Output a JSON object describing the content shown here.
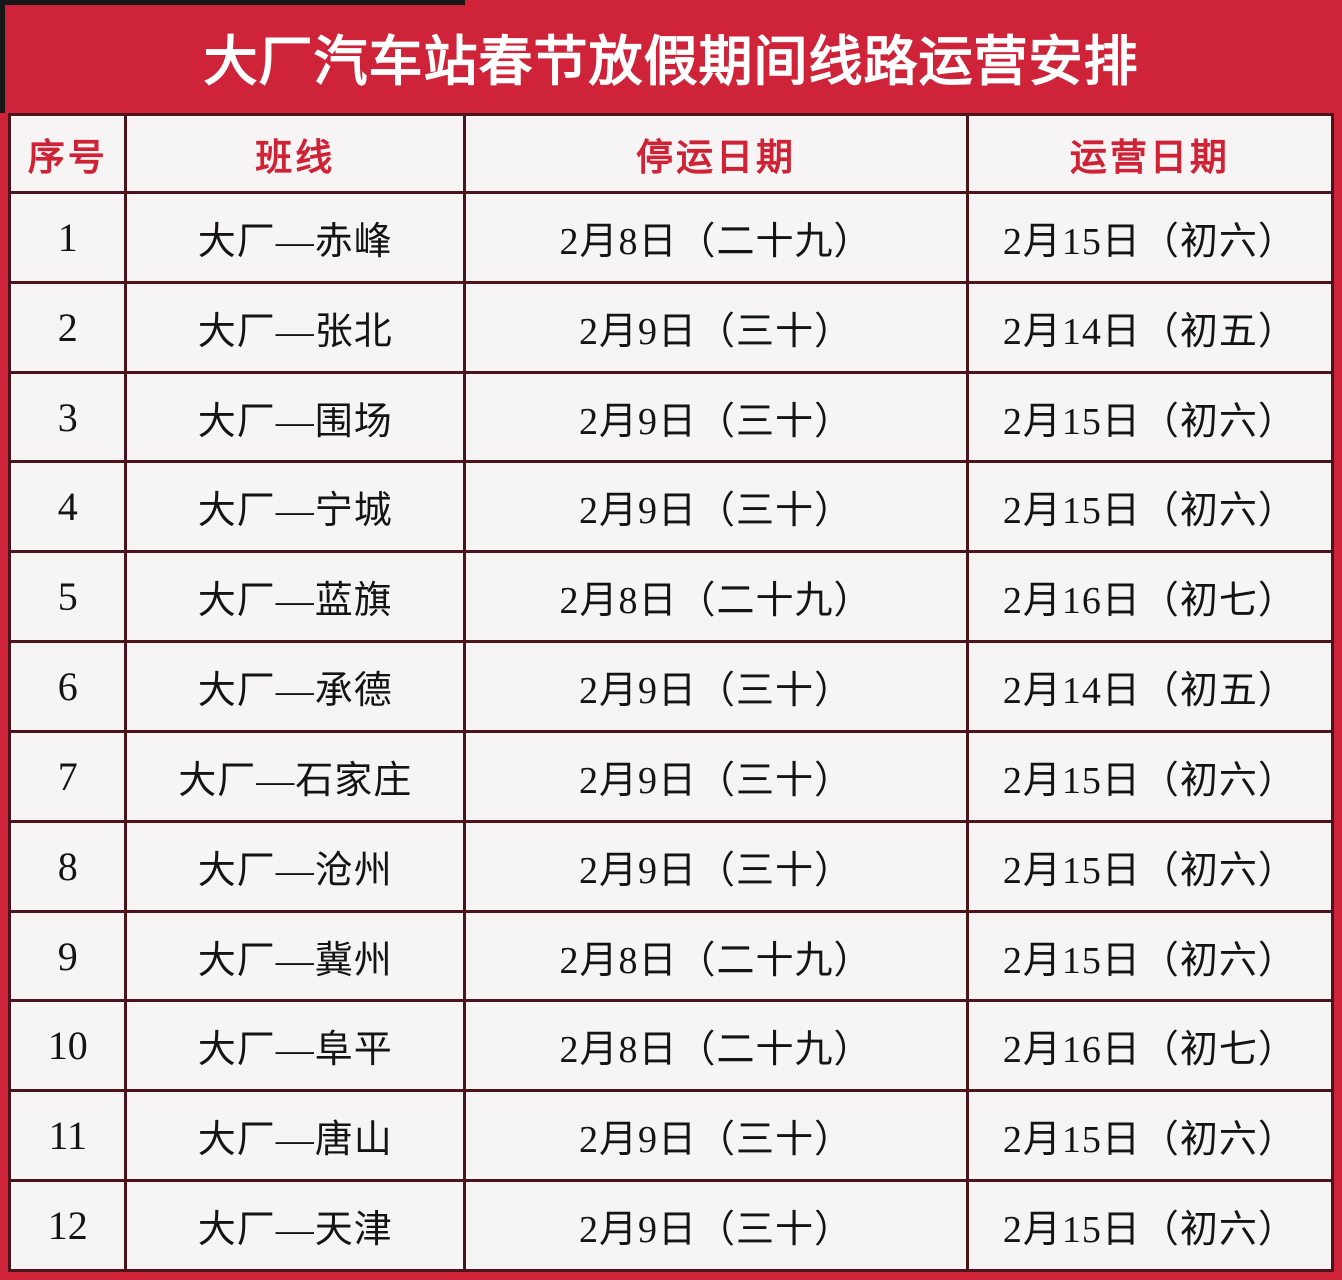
{
  "page": {
    "title": "大厂汽车站春节放假期间线路运营安排"
  },
  "colors": {
    "primary_red": "#ce2338",
    "grid_border": "#4d141b",
    "header_text_red": "#cf2235",
    "cell_background": "#f6f4f5",
    "title_text": "#ffffff",
    "body_text": "#141414"
  },
  "table": {
    "columns": [
      "序号",
      "班线",
      "停运日期",
      "运营日期"
    ],
    "rows": [
      {
        "no": "1",
        "route": "大厂—赤峰",
        "stop_date": "2月8日（二十九）",
        "resume_date": "2月15日（初六）"
      },
      {
        "no": "2",
        "route": "大厂—张北",
        "stop_date": "2月9日（三十）",
        "resume_date": "2月14日（初五）"
      },
      {
        "no": "3",
        "route": "大厂—围场",
        "stop_date": "2月9日（三十）",
        "resume_date": "2月15日（初六）"
      },
      {
        "no": "4",
        "route": "大厂—宁城",
        "stop_date": "2月9日（三十）",
        "resume_date": "2月15日（初六）"
      },
      {
        "no": "5",
        "route": "大厂—蓝旗",
        "stop_date": "2月8日（二十九）",
        "resume_date": "2月16日（初七）"
      },
      {
        "no": "6",
        "route": "大厂—承德",
        "stop_date": "2月9日（三十）",
        "resume_date": "2月14日（初五）"
      },
      {
        "no": "7",
        "route": "大厂—石家庄",
        "stop_date": "2月9日（三十）",
        "resume_date": "2月15日（初六）"
      },
      {
        "no": "8",
        "route": "大厂—沧州",
        "stop_date": "2月9日（三十）",
        "resume_date": "2月15日（初六）"
      },
      {
        "no": "9",
        "route": "大厂—冀州",
        "stop_date": "2月8日（二十九）",
        "resume_date": "2月15日（初六）"
      },
      {
        "no": "10",
        "route": "大厂—阜平",
        "stop_date": "2月8日（二十九）",
        "resume_date": "2月16日（初七）"
      },
      {
        "no": "11",
        "route": "大厂—唐山",
        "stop_date": "2月9日（三十）",
        "resume_date": "2月15日（初六）"
      },
      {
        "no": "12",
        "route": "大厂—天津",
        "stop_date": "2月9日（三十）",
        "resume_date": "2月15日（初六）"
      }
    ]
  }
}
